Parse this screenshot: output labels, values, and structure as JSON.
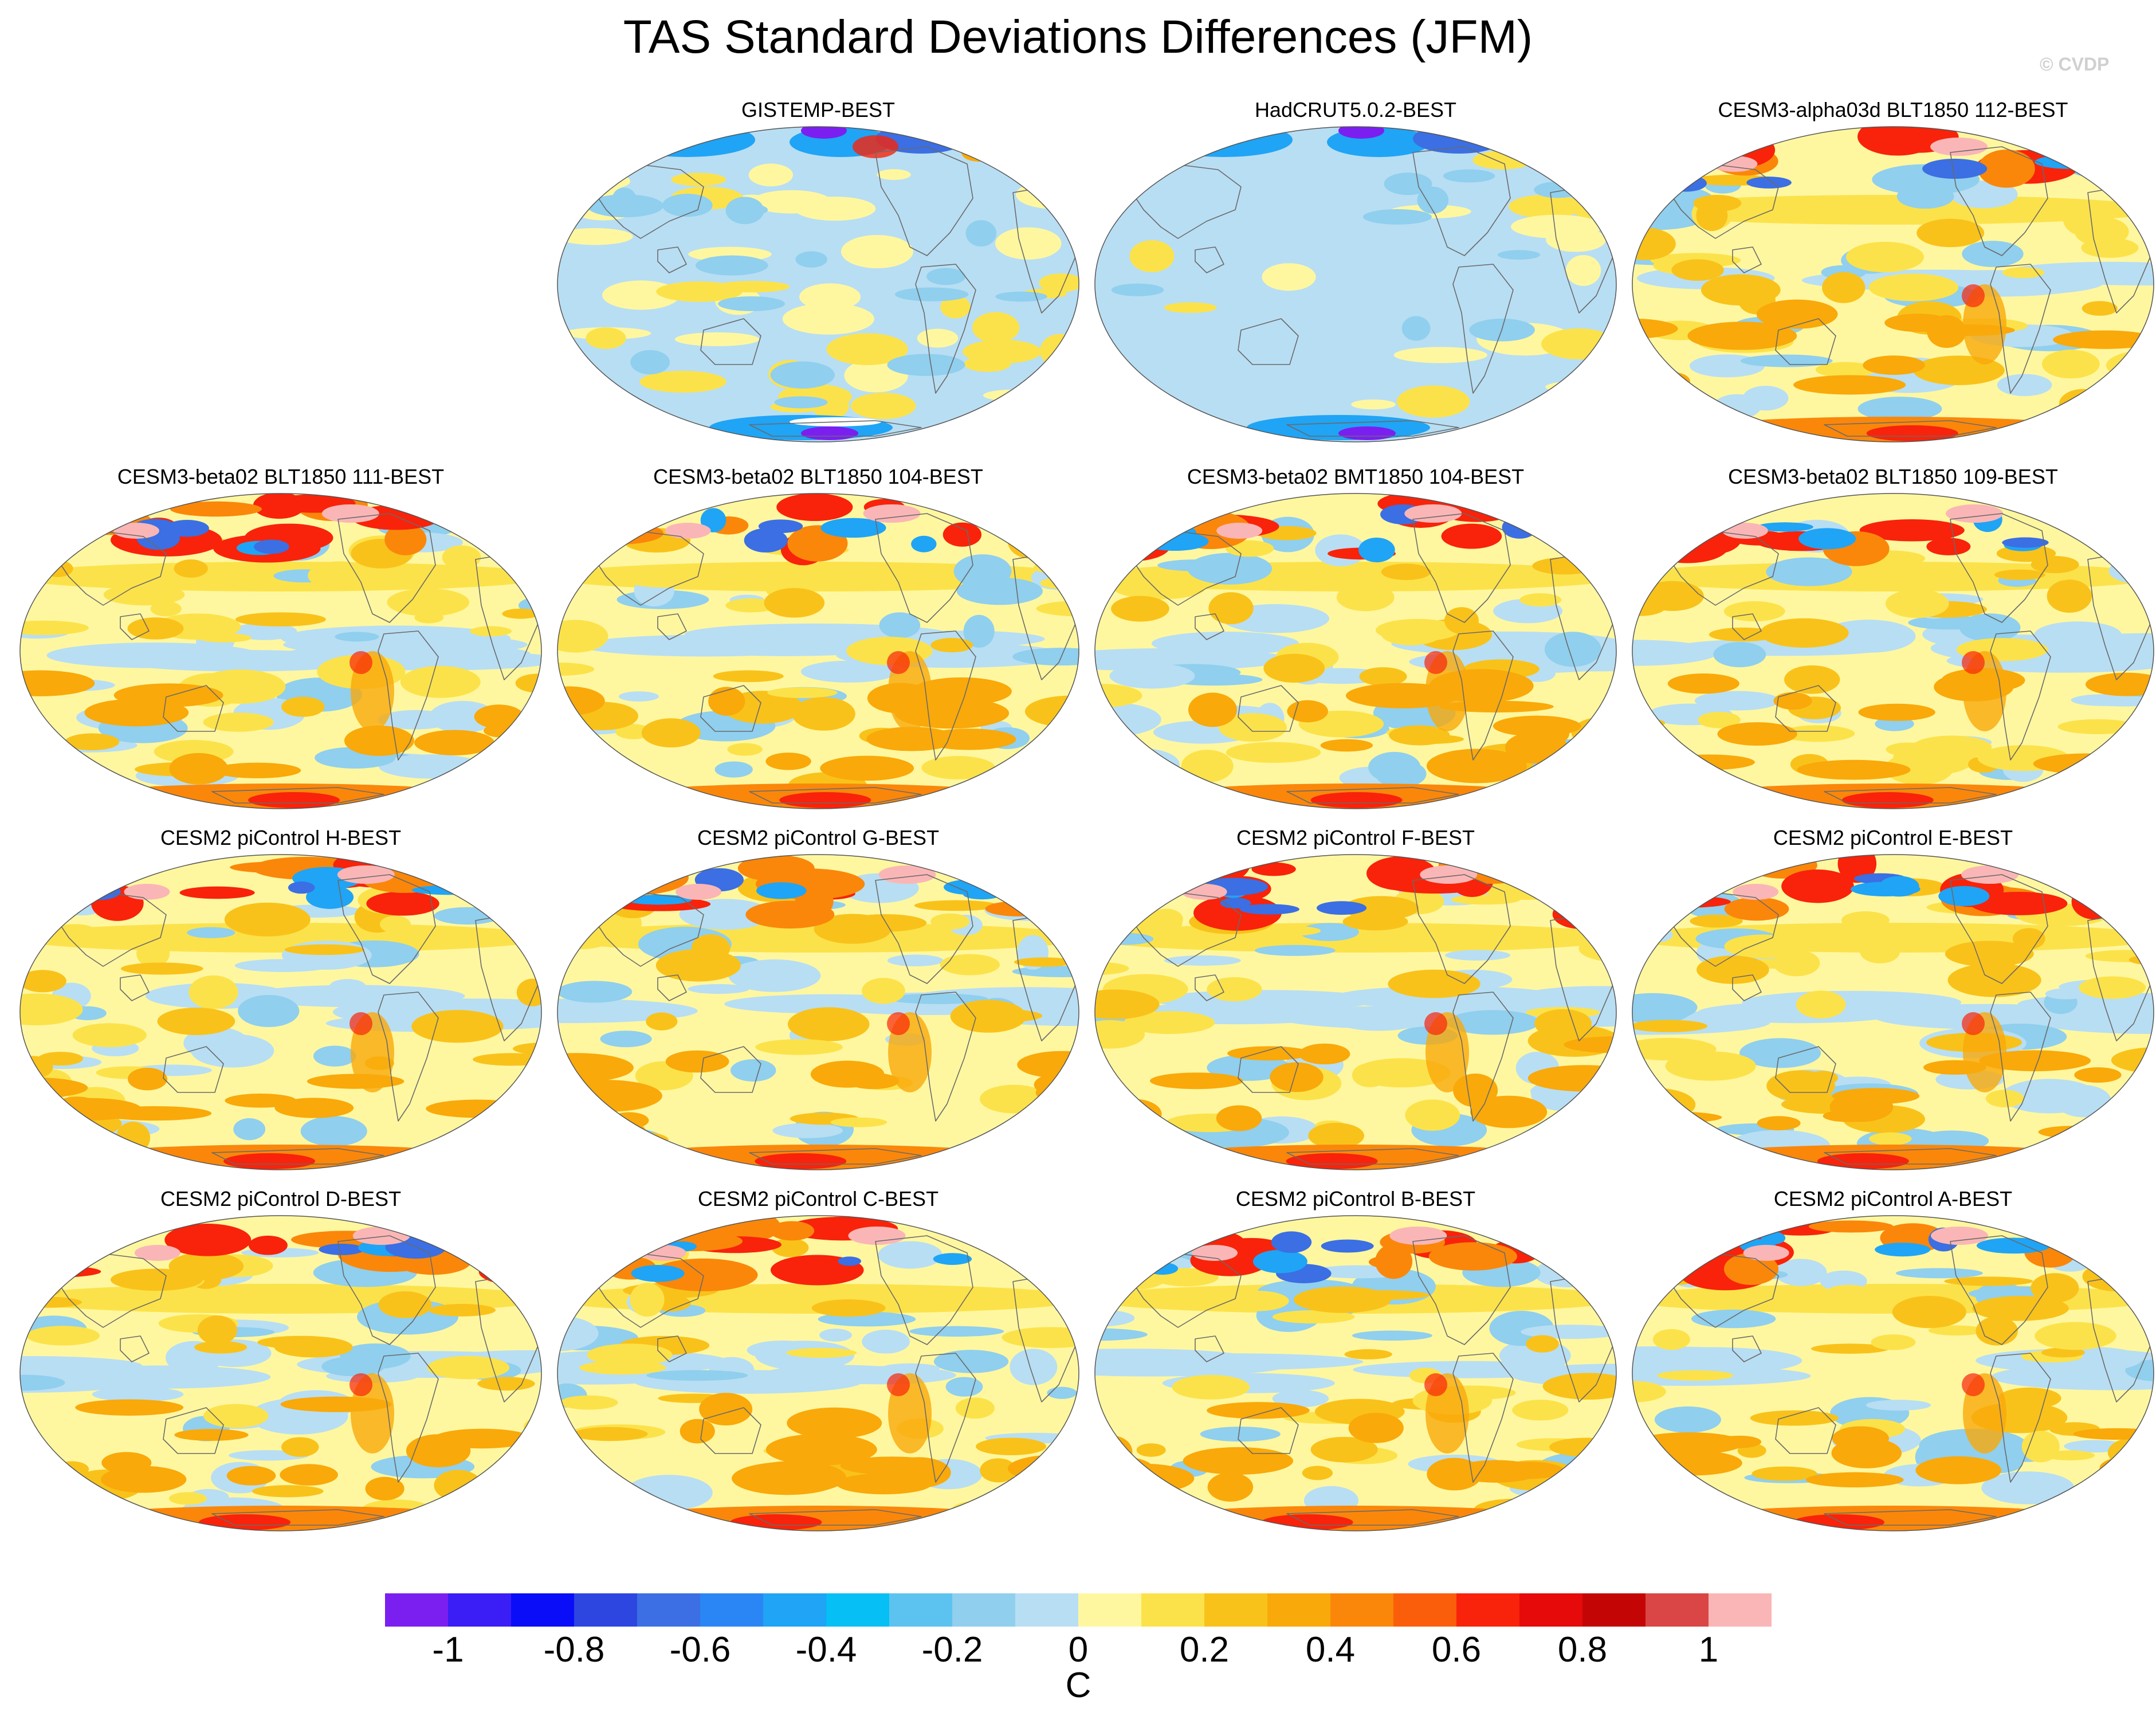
{
  "title": "TAS Standard Deviations Differences (JFM)",
  "watermark": "© CVDP",
  "panels": [
    {
      "label": "GISTEMP-BEST",
      "pattern": "obs_gistemp"
    },
    {
      "label": "HadCRUT5.0.2-BEST",
      "pattern": "obs_hadcrut"
    },
    {
      "label": "CESM3-alpha03d BLT1850 112-BEST",
      "pattern": "model"
    },
    {
      "label": "CESM3-beta02 BLT1850 111-BEST",
      "pattern": "model"
    },
    {
      "label": "CESM3-beta02 BLT1850 104-BEST",
      "pattern": "model"
    },
    {
      "label": "CESM3-beta02 BMT1850 104-BEST",
      "pattern": "model"
    },
    {
      "label": "CESM3-beta02 BLT1850 109-BEST",
      "pattern": "model"
    },
    {
      "label": "CESM2 piControl H-BEST",
      "pattern": "model"
    },
    {
      "label": "CESM2 piControl G-BEST",
      "pattern": "model"
    },
    {
      "label": "CESM2 piControl F-BEST",
      "pattern": "model"
    },
    {
      "label": "CESM2 piControl E-BEST",
      "pattern": "model"
    },
    {
      "label": "CESM2 piControl D-BEST",
      "pattern": "model"
    },
    {
      "label": "CESM2 piControl C-BEST",
      "pattern": "model"
    },
    {
      "label": "CESM2 piControl B-BEST",
      "pattern": "model"
    },
    {
      "label": "CESM2 piControl A-BEST",
      "pattern": "model"
    }
  ],
  "colorbar": {
    "colors": [
      "#7b1ff0",
      "#3a1ef5",
      "#0a0df8",
      "#2d46e0",
      "#3b6fe3",
      "#2a86f5",
      "#20a4f5",
      "#05bff5",
      "#5cc3f0",
      "#90cfee",
      "#b8def3",
      "#fff7a0",
      "#fce24a",
      "#f9c21a",
      "#f9a90a",
      "#fa870a",
      "#fb5e0a",
      "#f8230a",
      "#e60a0a",
      "#c40505",
      "#da4545",
      "#fab6b6"
    ],
    "ticks": [
      "-1",
      "-0.8",
      "-0.6",
      "-0.4",
      "-0.2",
      "0",
      "0.2",
      "0.4",
      "0.6",
      "0.8",
      "1"
    ],
    "unit": "C"
  }
}
